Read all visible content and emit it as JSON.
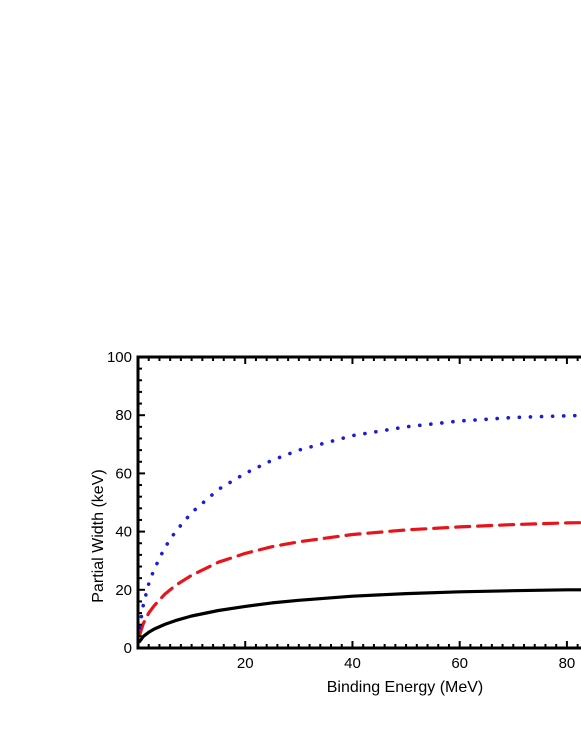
{
  "chart_data": {
    "type": "line",
    "title": "",
    "xlabel": "Binding Energy  (MeV)",
    "ylabel": "Partial Width  (keV)",
    "xlim": [
      0,
      83
    ],
    "ylim": [
      0,
      100
    ],
    "x_ticks": [
      20,
      40,
      60,
      80
    ],
    "y_ticks": [
      0,
      20,
      40,
      60,
      80,
      100
    ],
    "grid": false,
    "legend": "none",
    "series": [
      {
        "color": "#000000",
        "style": "solid",
        "x": [
          0.3,
          1,
          2,
          3,
          5,
          7,
          10,
          15,
          20,
          25,
          30,
          40,
          50,
          60,
          70,
          80,
          83
        ],
        "values": [
          2.2,
          4.0,
          5.4,
          6.5,
          8.1,
          9.4,
          11.0,
          12.9,
          14.3,
          15.5,
          16.4,
          17.8,
          18.7,
          19.3,
          19.7,
          20.0,
          20.0
        ]
      },
      {
        "color": "#e8141a",
        "style": "dashed",
        "x": [
          0.3,
          1,
          2,
          3,
          5,
          7,
          10,
          15,
          20,
          25,
          30,
          40,
          50,
          60,
          70,
          80,
          83
        ],
        "values": [
          4.5,
          8.5,
          12.0,
          14.5,
          18.5,
          21.5,
          25.0,
          29.5,
          32.5,
          34.8,
          36.5,
          39.0,
          40.6,
          41.6,
          42.4,
          43.0,
          43.1
        ]
      },
      {
        "color": "#1a1ae0",
        "style": "dotted",
        "x": [
          0.3,
          1,
          2,
          3,
          5,
          7,
          10,
          15,
          20,
          25,
          30,
          40,
          50,
          60,
          70,
          80,
          83
        ],
        "values": [
          7.0,
          15.0,
          22.0,
          27.0,
          34.5,
          40.0,
          46.5,
          54.5,
          60.0,
          64.5,
          68.0,
          73.0,
          76.0,
          78.0,
          79.2,
          79.8,
          79.9
        ]
      }
    ]
  }
}
